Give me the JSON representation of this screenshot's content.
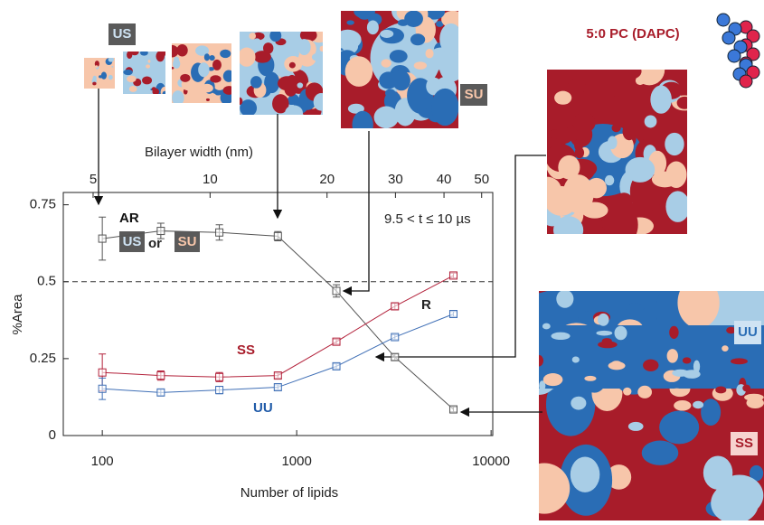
{
  "chart_data": {
    "type": "line",
    "x_label": "Number of lipids",
    "y_label": "%Area",
    "x2_label": "Bilayer width (nm)",
    "x": [
      100,
      200,
      400,
      800,
      1600,
      3200,
      6400
    ],
    "series": [
      {
        "name": "AR",
        "color": "#555555",
        "values": [
          0.64,
          0.665,
          0.66,
          0.648,
          0.47,
          0.255,
          0.085
        ],
        "errors": [
          0.07,
          0.025,
          0.025,
          0.015,
          0.02,
          0.01,
          0.008
        ]
      },
      {
        "name": "SS",
        "color": "#b3223b",
        "values": [
          0.205,
          0.195,
          0.19,
          0.195,
          0.305,
          0.42,
          0.52
        ],
        "errors": [
          0.06,
          0.015,
          0.015,
          0.008,
          0.008,
          0.01,
          0.008
        ]
      },
      {
        "name": "UU",
        "color": "#3f6fb6",
        "values": [
          0.152,
          0.14,
          0.148,
          0.157,
          0.225,
          0.32,
          0.395
        ],
        "errors": [
          0.035,
          0.01,
          0.012,
          0.008,
          0.008,
          0.008,
          0.008
        ]
      }
    ],
    "xlog": true,
    "xlim": [
      63,
      10200
    ],
    "xticks": [
      100,
      1000,
      10000
    ],
    "ylim": [
      0,
      0.79
    ],
    "yticks": [
      0,
      0.25,
      0.5,
      0.75
    ],
    "x2log": true,
    "x2lim": [
      4.19,
      53.4
    ],
    "x2ticks": [
      5,
      10,
      20,
      30,
      40,
      50
    ],
    "hline": 0.5,
    "annotations": [
      "9.5 < t ≤ 10 µs",
      "US",
      "or",
      "SU",
      "R",
      "US",
      "SU",
      "5:0 PC (DAPC)",
      "UU",
      "SS"
    ]
  }
}
